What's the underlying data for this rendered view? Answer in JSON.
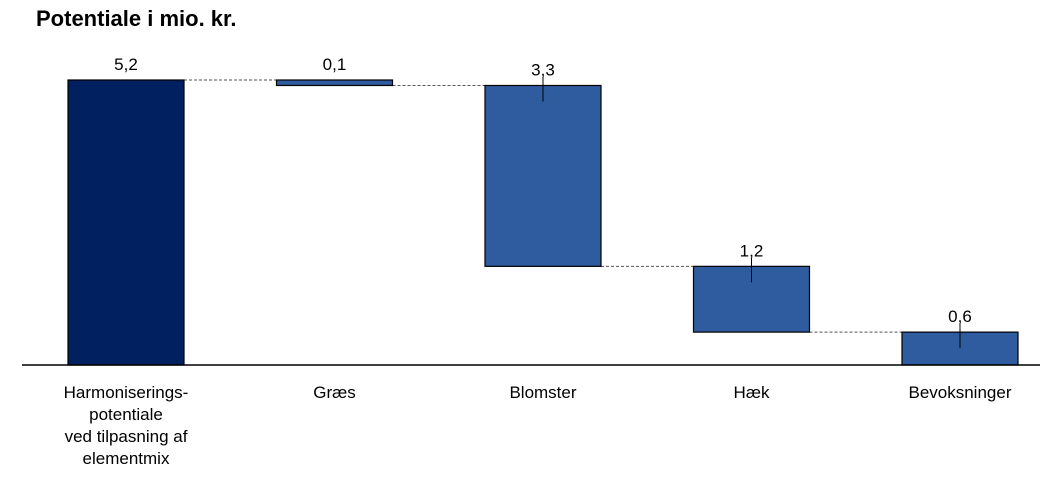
{
  "chart_data": {
    "type": "bar",
    "subtype": "waterfall",
    "title": "Potentiale i mio. kr.",
    "categories": [
      [
        "Harmoniserings-",
        "potentiale",
        "ved tilpasning af",
        "elementmix"
      ],
      [
        "Græs"
      ],
      [
        "Blomster"
      ],
      [
        "Hæk"
      ],
      [
        "Bevoksninger"
      ]
    ],
    "values": [
      5.2,
      0.1,
      3.3,
      1.2,
      0.6
    ],
    "value_labels": [
      "5,2",
      "0,1",
      "3,3",
      "1,2",
      "0,6"
    ],
    "bar_kind": [
      "total",
      "step",
      "step",
      "step",
      "step"
    ],
    "colors": {
      "total": "#002060",
      "step": "#2E5C9E",
      "outline": "#000000",
      "connector": "#555555"
    },
    "ylim": [
      0,
      5.2
    ],
    "grid": false,
    "legend": "none"
  }
}
